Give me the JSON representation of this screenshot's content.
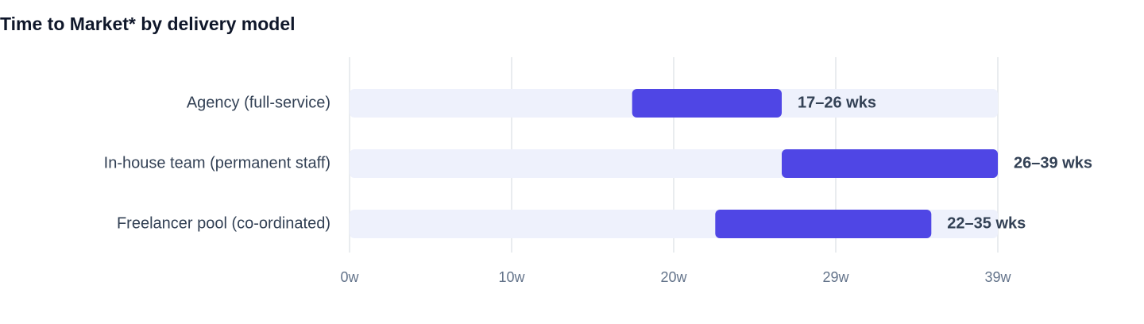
{
  "chart_data": {
    "type": "range_bar",
    "title": "Time to Market* by delivery model",
    "categories": [
      "Agency (full-service)",
      "In-house team (permanent staff)",
      "Freelancer pool (co-ordinated)"
    ],
    "low": [
      17,
      26,
      22
    ],
    "high": [
      26,
      39,
      35
    ],
    "value_labels": [
      "17–26 wks",
      "26–39 wks",
      "22–35 wks"
    ],
    "color": "#4f46e5",
    "track_color": "#eef1fc",
    "xlim": [
      0,
      39
    ],
    "xticks": [
      {
        "value": 0,
        "label": "0w"
      },
      {
        "value": 9.75,
        "label": "10w"
      },
      {
        "value": 19.5,
        "label": "20w"
      },
      {
        "value": 29.25,
        "label": "29w"
      },
      {
        "value": 39,
        "label": "39w"
      }
    ],
    "grid": true
  }
}
